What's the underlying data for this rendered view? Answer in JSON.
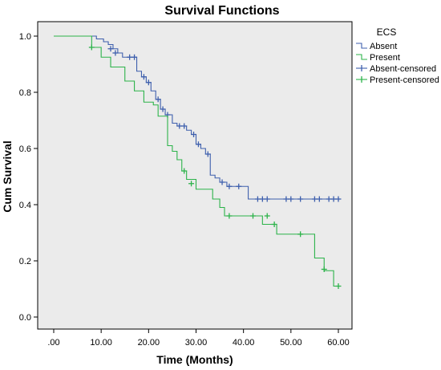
{
  "chart_data": {
    "type": "line",
    "subtype": "kaplan-meier-step",
    "title": "Survival Functions",
    "xlabel": "Time (Months)",
    "ylabel": "Cum Survival",
    "xlim": [
      0,
      60
    ],
    "ylim": [
      0,
      1.0
    ],
    "x_ticks": [
      ".00",
      "10.00",
      "20.00",
      "30.00",
      "40.00",
      "50.00",
      "60.00"
    ],
    "x_tick_values": [
      0,
      10,
      20,
      30,
      40,
      50,
      60
    ],
    "y_ticks": [
      "0.0",
      "0.2",
      "0.4",
      "0.6",
      "0.8",
      "1.0"
    ],
    "y_tick_values": [
      0,
      0.2,
      0.4,
      0.6,
      0.8,
      1.0
    ],
    "grid": false,
    "legend_title": "ECS",
    "legend_position": "right",
    "legend": [
      "Absent",
      "Present",
      "Absent-censored",
      "Present-censored"
    ],
    "background_color": "#ebebeb",
    "series": [
      {
        "name": "Absent",
        "color": "#3e5fad",
        "steps": [
          [
            0,
            1.0
          ],
          [
            9,
            0.99
          ],
          [
            10.5,
            0.98
          ],
          [
            11.5,
            0.97
          ],
          [
            12.5,
            0.955
          ],
          [
            13.5,
            0.94
          ],
          [
            14.5,
            0.925
          ],
          [
            17.5,
            0.875
          ],
          [
            18.5,
            0.855
          ],
          [
            19.5,
            0.835
          ],
          [
            20.5,
            0.805
          ],
          [
            21.5,
            0.775
          ],
          [
            22.5,
            0.74
          ],
          [
            23.5,
            0.72
          ],
          [
            25,
            0.69
          ],
          [
            26,
            0.68
          ],
          [
            28,
            0.665
          ],
          [
            29,
            0.65
          ],
          [
            30,
            0.615
          ],
          [
            31,
            0.6
          ],
          [
            32,
            0.58
          ],
          [
            33,
            0.505
          ],
          [
            34,
            0.495
          ],
          [
            35,
            0.48
          ],
          [
            36.5,
            0.465
          ],
          [
            41,
            0.42
          ],
          [
            60,
            0.42
          ]
        ],
        "censored": [
          [
            12,
            0.955
          ],
          [
            13,
            0.94
          ],
          [
            16,
            0.925
          ],
          [
            17,
            0.925
          ],
          [
            19,
            0.855
          ],
          [
            20,
            0.835
          ],
          [
            22,
            0.775
          ],
          [
            23,
            0.74
          ],
          [
            24,
            0.72
          ],
          [
            26.5,
            0.68
          ],
          [
            27.5,
            0.68
          ],
          [
            29.5,
            0.65
          ],
          [
            30.5,
            0.615
          ],
          [
            32.5,
            0.58
          ],
          [
            35.5,
            0.48
          ],
          [
            37,
            0.465
          ],
          [
            39,
            0.465
          ],
          [
            43,
            0.42
          ],
          [
            44,
            0.42
          ],
          [
            45,
            0.42
          ],
          [
            49,
            0.42
          ],
          [
            50,
            0.42
          ],
          [
            52,
            0.42
          ],
          [
            55,
            0.42
          ],
          [
            56,
            0.42
          ],
          [
            58,
            0.42
          ],
          [
            59,
            0.42
          ],
          [
            60,
            0.42
          ]
        ]
      },
      {
        "name": "Present",
        "color": "#2cb34a",
        "steps": [
          [
            0,
            1.0
          ],
          [
            8,
            0.96
          ],
          [
            10,
            0.925
          ],
          [
            12,
            0.89
          ],
          [
            15,
            0.84
          ],
          [
            17,
            0.805
          ],
          [
            19,
            0.765
          ],
          [
            21,
            0.755
          ],
          [
            22,
            0.715
          ],
          [
            24,
            0.61
          ],
          [
            25,
            0.59
          ],
          [
            26,
            0.56
          ],
          [
            27,
            0.52
          ],
          [
            28,
            0.49
          ],
          [
            30,
            0.455
          ],
          [
            33.5,
            0.42
          ],
          [
            35,
            0.39
          ],
          [
            36,
            0.36
          ],
          [
            44,
            0.33
          ],
          [
            47,
            0.295
          ],
          [
            55,
            0.21
          ],
          [
            57,
            0.165
          ],
          [
            59,
            0.11
          ],
          [
            60,
            0.11
          ]
        ],
        "censored": [
          [
            8,
            0.96
          ],
          [
            27.5,
            0.52
          ],
          [
            29,
            0.475
          ],
          [
            37,
            0.36
          ],
          [
            42,
            0.36
          ],
          [
            45,
            0.36
          ],
          [
            46.5,
            0.33
          ],
          [
            52,
            0.295
          ],
          [
            57,
            0.17
          ],
          [
            60,
            0.11
          ]
        ]
      }
    ]
  }
}
